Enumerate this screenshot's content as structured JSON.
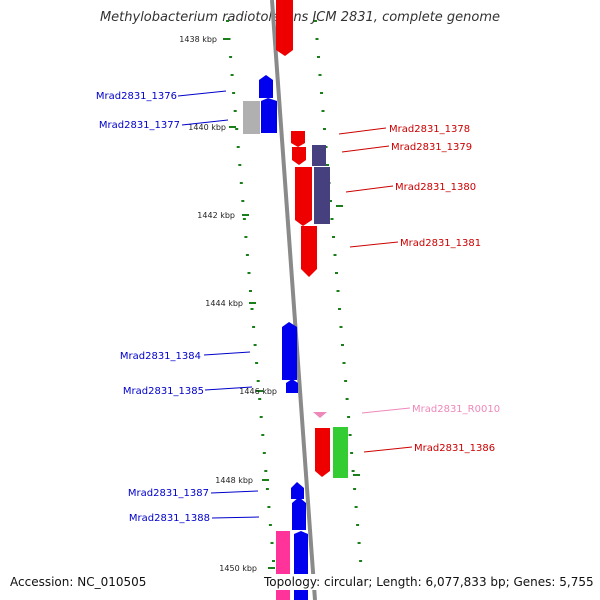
{
  "title": "Methylobacterium radiotolerans JCM 2831, complete genome",
  "accession": "Accession: NC_010505",
  "summary": "Topology: circular; Length: 6,077,833 bp; Genes: 5,755",
  "colors": {
    "backbone": "#8a8a8a",
    "ruler_dot": "#1a7f1a",
    "blue_gene": "#0000ee",
    "red_gene": "#ee0000",
    "purple_gene": "#46407f",
    "gray_gene": "#b0b0b0",
    "green_gene": "#33cc33",
    "magenta_gene": "#ff3399",
    "pink_label": "#ee88bb"
  },
  "ticks": [
    "1438 kbp",
    "1440 kbp",
    "1442 kbp",
    "1444 kbp",
    "1446 kbp",
    "1448 kbp",
    "1450 kbp"
  ],
  "genes": [
    "Mrad2831_1376",
    "Mrad2831_1377",
    "Mrad2831_1378",
    "Mrad2831_1379",
    "Mrad2831_1380",
    "Mrad2831_1381",
    "Mrad2831_1384",
    "Mrad2831_1385",
    "Mrad2831_R0010",
    "Mrad2831_1386",
    "Mrad2831_1387",
    "Mrad2831_1388"
  ]
}
